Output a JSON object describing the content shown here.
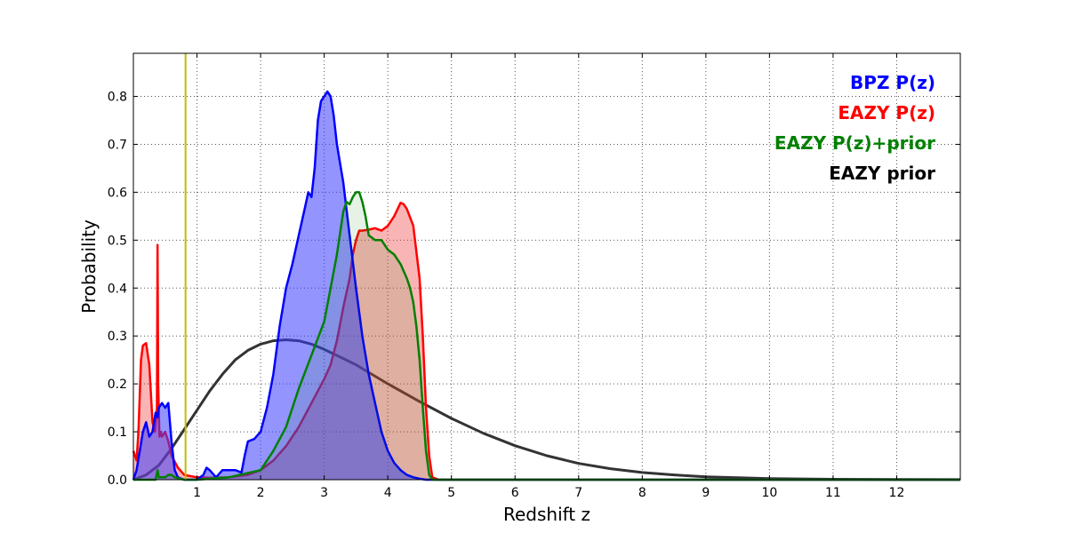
{
  "chart_data": {
    "type": "area",
    "xlabel": "Redshift z",
    "ylabel": "Probability",
    "xlim": [
      0,
      13
    ],
    "ylim": [
      0,
      0.89
    ],
    "grid": true,
    "legend_placement": "top-right",
    "xticks": [
      1,
      2,
      3,
      4,
      5,
      6,
      7,
      8,
      9,
      10,
      11,
      12
    ],
    "xtick_labels": [
      "1",
      "2",
      "3",
      "4",
      "5",
      "6",
      "7",
      "8",
      "9",
      "10",
      "11",
      "12"
    ],
    "yticks": [
      0,
      0.1,
      0.2,
      0.3,
      0.4,
      0.5,
      0.6,
      0.7,
      0.8
    ],
    "ytick_labels": [
      "0.0",
      "0.1",
      "0.2",
      "0.3",
      "0.4",
      "0.5",
      "0.6",
      "0.7",
      "0.8"
    ],
    "vline": {
      "x": 0.82,
      "color": "#bfbf00"
    },
    "series": [
      {
        "name": "EAZY prior",
        "color": "#333333",
        "filled": false,
        "x": [
          0,
          0.2,
          0.4,
          0.6,
          0.8,
          1.0,
          1.2,
          1.4,
          1.6,
          1.8,
          2.0,
          2.2,
          2.4,
          2.6,
          2.8,
          3.0,
          3.5,
          4.0,
          4.5,
          5.0,
          5.5,
          6.0,
          6.5,
          7.0,
          7.5,
          8.0,
          8.5,
          9.0,
          10.0,
          11.0,
          12.0,
          13.0
        ],
        "y": [
          0,
          0.01,
          0.03,
          0.065,
          0.105,
          0.145,
          0.185,
          0.22,
          0.25,
          0.27,
          0.283,
          0.29,
          0.292,
          0.29,
          0.283,
          0.272,
          0.24,
          0.2,
          0.163,
          0.128,
          0.097,
          0.071,
          0.05,
          0.034,
          0.023,
          0.015,
          0.01,
          0.006,
          0.0025,
          0.001,
          0.0004,
          0.0001
        ]
      },
      {
        "name": "EAZY P(z)",
        "color": "#ff0000",
        "filled": true,
        "fill": "rgba(240,60,60,0.38)",
        "x": [
          0,
          0.05,
          0.08,
          0.12,
          0.15,
          0.2,
          0.25,
          0.3,
          0.34,
          0.37,
          0.38,
          0.39,
          0.41,
          0.43,
          0.45,
          0.5,
          0.55,
          0.6,
          0.7,
          0.8,
          1.0,
          1.2,
          1.5,
          1.8,
          2.0,
          2.2,
          2.4,
          2.6,
          2.8,
          3.0,
          3.1,
          3.2,
          3.3,
          3.4,
          3.45,
          3.5,
          3.55,
          3.6,
          3.7,
          3.8,
          3.9,
          4.0,
          4.1,
          4.2,
          4.25,
          4.3,
          4.4,
          4.5,
          4.55,
          4.6,
          4.65,
          4.7,
          4.8,
          5.0,
          6.0,
          8.0,
          10.0,
          13.0
        ],
        "y": [
          0.06,
          0.04,
          0.1,
          0.25,
          0.28,
          0.285,
          0.24,
          0.12,
          0.1,
          0.15,
          0.49,
          0.2,
          0.09,
          0.1,
          0.09,
          0.1,
          0.08,
          0.05,
          0.025,
          0.01,
          0.005,
          0.004,
          0.005,
          0.01,
          0.02,
          0.04,
          0.07,
          0.11,
          0.16,
          0.21,
          0.24,
          0.29,
          0.36,
          0.42,
          0.47,
          0.5,
          0.52,
          0.52,
          0.522,
          0.525,
          0.52,
          0.53,
          0.55,
          0.578,
          0.575,
          0.565,
          0.53,
          0.42,
          0.3,
          0.15,
          0.05,
          0.005,
          0,
          0,
          0,
          0,
          0,
          0
        ]
      },
      {
        "name": "BPZ P(z)",
        "color": "#0000ff",
        "filled": true,
        "fill": "rgba(60,60,255,0.55)",
        "x": [
          0,
          0.05,
          0.1,
          0.15,
          0.2,
          0.25,
          0.3,
          0.35,
          0.38,
          0.4,
          0.45,
          0.5,
          0.55,
          0.6,
          0.65,
          0.7,
          0.8,
          1.0,
          1.1,
          1.15,
          1.2,
          1.3,
          1.4,
          1.5,
          1.6,
          1.7,
          1.75,
          1.8,
          1.9,
          2.0,
          2.1,
          2.2,
          2.3,
          2.4,
          2.5,
          2.6,
          2.7,
          2.75,
          2.8,
          2.85,
          2.9,
          2.95,
          3.0,
          3.05,
          3.1,
          3.15,
          3.2,
          3.3,
          3.4,
          3.5,
          3.6,
          3.7,
          3.8,
          3.9,
          4.0,
          4.1,
          4.2,
          4.3,
          4.4,
          4.5,
          4.6,
          4.8,
          5.0,
          8.0,
          13.0
        ],
        "y": [
          0,
          0.02,
          0.06,
          0.1,
          0.12,
          0.09,
          0.1,
          0.14,
          0.13,
          0.15,
          0.16,
          0.15,
          0.16,
          0.08,
          0.02,
          0.005,
          0,
          0,
          0.01,
          0.025,
          0.02,
          0.005,
          0.02,
          0.02,
          0.02,
          0.015,
          0.05,
          0.08,
          0.085,
          0.1,
          0.15,
          0.22,
          0.32,
          0.4,
          0.45,
          0.51,
          0.57,
          0.6,
          0.59,
          0.65,
          0.75,
          0.79,
          0.8,
          0.81,
          0.8,
          0.76,
          0.7,
          0.62,
          0.51,
          0.4,
          0.3,
          0.22,
          0.16,
          0.1,
          0.06,
          0.035,
          0.02,
          0.01,
          0.005,
          0.002,
          0,
          0,
          0,
          0,
          0
        ]
      },
      {
        "name": "EAZY P(z)+prior",
        "color": "#008000",
        "filled": true,
        "fill": "rgba(0,128,0,0.10)",
        "x": [
          0,
          0.35,
          0.38,
          0.4,
          0.5,
          0.55,
          0.6,
          0.65,
          0.8,
          1.0,
          1.5,
          2.0,
          2.2,
          2.4,
          2.6,
          2.8,
          3.0,
          3.1,
          3.2,
          3.3,
          3.35,
          3.4,
          3.45,
          3.5,
          3.55,
          3.6,
          3.65,
          3.7,
          3.8,
          3.9,
          4.0,
          4.1,
          4.2,
          4.3,
          4.35,
          4.4,
          4.45,
          4.5,
          4.55,
          4.6,
          4.65,
          4.7,
          4.8,
          5.0,
          13.0
        ],
        "y": [
          0,
          0.0,
          0.02,
          0.005,
          0.005,
          0.01,
          0.01,
          0.005,
          0,
          0,
          0.005,
          0.02,
          0.06,
          0.11,
          0.19,
          0.26,
          0.33,
          0.4,
          0.47,
          0.56,
          0.58,
          0.575,
          0.59,
          0.6,
          0.6,
          0.58,
          0.55,
          0.51,
          0.5,
          0.5,
          0.48,
          0.47,
          0.45,
          0.42,
          0.4,
          0.37,
          0.32,
          0.25,
          0.15,
          0.06,
          0.01,
          0,
          0,
          0,
          0
        ]
      }
    ],
    "legend": [
      {
        "label": "BPZ P(z)",
        "color": "#0000ff"
      },
      {
        "label": "EAZY P(z)",
        "color": "#ff0000"
      },
      {
        "label": "EAZY P(z)+prior",
        "color": "#008000"
      },
      {
        "label": "EAZY prior",
        "color": "#000000"
      }
    ]
  }
}
